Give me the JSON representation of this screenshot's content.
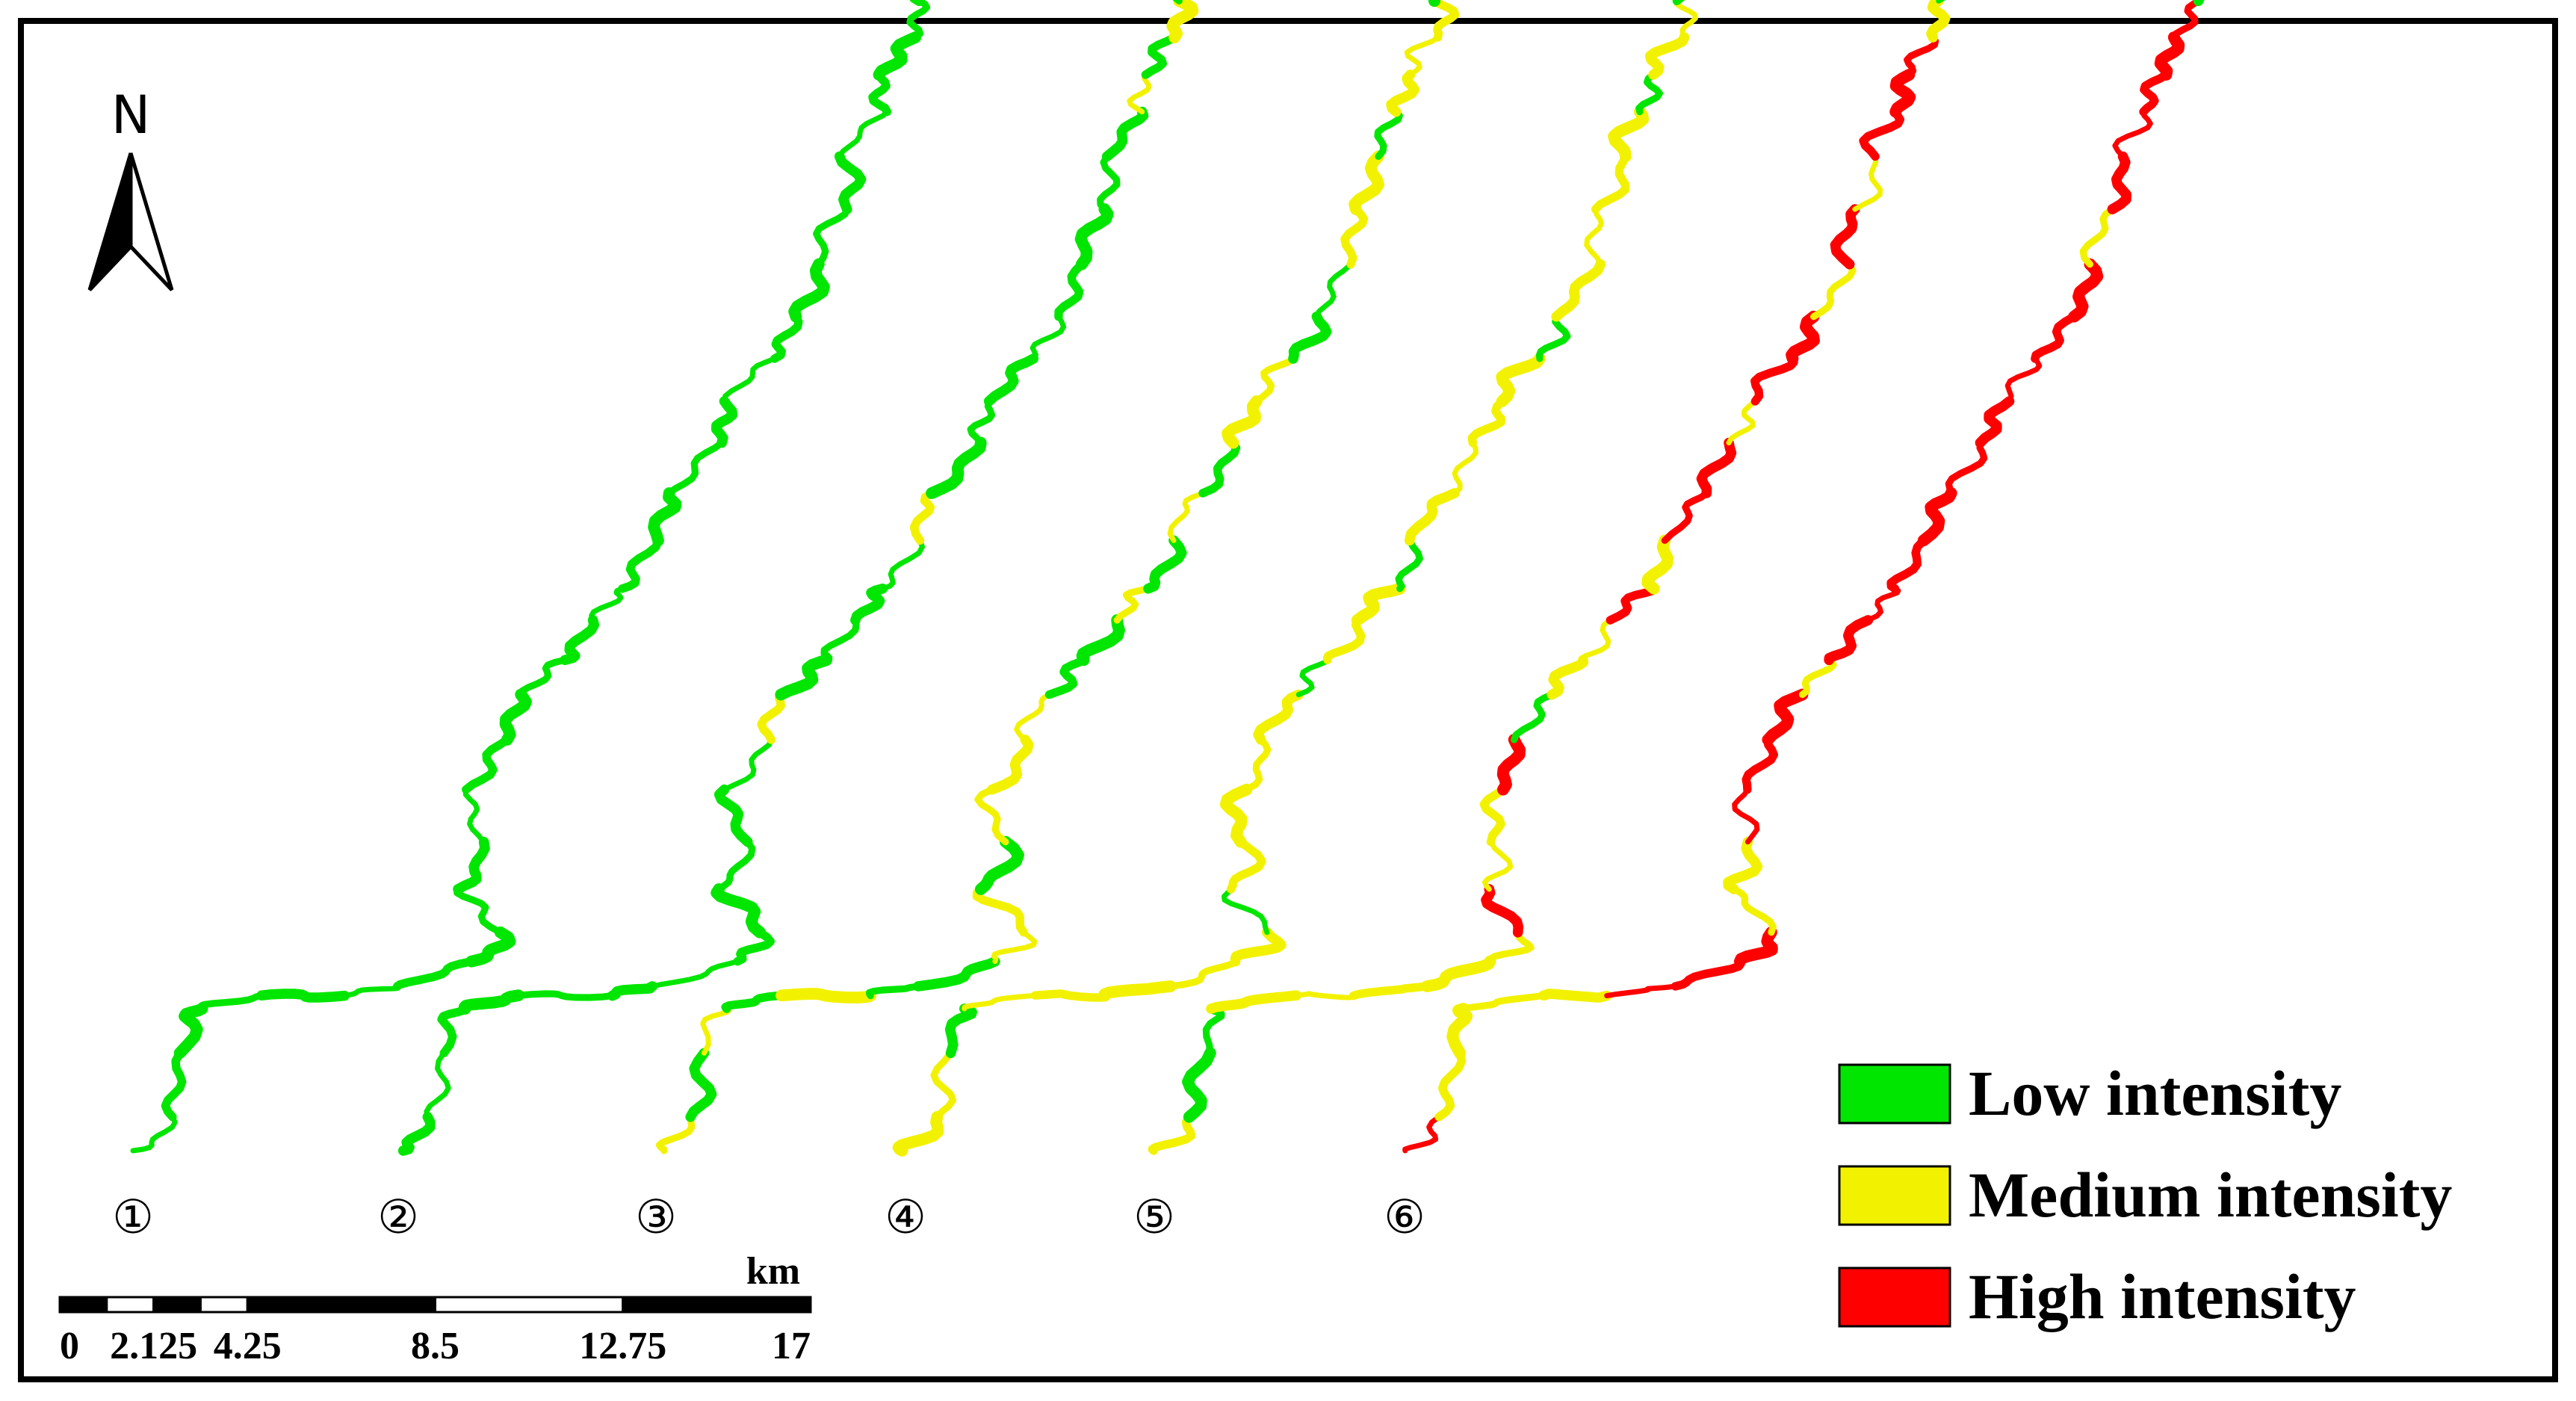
{
  "north_arrow": {
    "letter": "N",
    "icon": "north-arrow-icon"
  },
  "river_panels": [
    {
      "label": "①",
      "segments": [
        "low",
        "low",
        "low",
        "low",
        "low",
        "low",
        "low",
        "low",
        "low",
        "low",
        "low",
        "low",
        "low",
        "low",
        "low",
        "low",
        "low",
        "low",
        "low",
        "low",
        "low",
        "low",
        "low",
        "low",
        "low",
        "low",
        "low",
        "low",
        "low",
        "low"
      ]
    },
    {
      "label": "②",
      "segments": [
        "low",
        "low",
        "low",
        "low",
        "low",
        "low",
        "low",
        "low",
        "low",
        "low",
        "low",
        "low",
        "medium",
        "low",
        "low",
        "low",
        "low",
        "medium",
        "low",
        "low",
        "low",
        "low",
        "low",
        "low",
        "low",
        "low",
        "medium",
        "low",
        "medium",
        "low"
      ]
    },
    {
      "label": "③",
      "segments": [
        "medium",
        "low",
        "medium",
        "low",
        "medium",
        "low",
        "low",
        "medium",
        "medium",
        "low",
        "medium",
        "medium",
        "medium",
        "low",
        "low",
        "medium",
        "low",
        "medium",
        "low",
        "medium",
        "medium",
        "low",
        "low",
        "medium",
        "medium",
        "low",
        "medium",
        "medium",
        "medium",
        "low"
      ]
    },
    {
      "label": "④",
      "segments": [
        "medium",
        "medium",
        "low",
        "medium",
        "medium",
        "medium",
        "medium",
        "medium",
        "low",
        "medium",
        "medium",
        "medium",
        "medium",
        "low",
        "medium",
        "medium",
        "low",
        "medium",
        "medium",
        "medium",
        "medium",
        "low",
        "medium",
        "medium",
        "medium",
        "medium",
        "low",
        "medium",
        "medium",
        "low"
      ]
    },
    {
      "label": "⑤",
      "segments": [
        "medium",
        "low",
        "low",
        "medium",
        "medium",
        "medium",
        "medium",
        "medium",
        "high",
        "medium",
        "medium",
        "high",
        "low",
        "medium",
        "medium",
        "high",
        "medium",
        "high",
        "high",
        "medium",
        "high",
        "high",
        "medium",
        "high",
        "medium",
        "high",
        "high",
        "high",
        "medium",
        "low"
      ]
    },
    {
      "label": "⑥",
      "segments": [
        "high",
        "medium",
        "medium",
        "medium",
        "medium",
        "high",
        "high",
        "high",
        "medium",
        "medium",
        "high",
        "high",
        "high",
        "medium",
        "high",
        "high",
        "high",
        "high",
        "high",
        "high",
        "high",
        "high",
        "high",
        "medium",
        "high",
        "high",
        "high",
        "high",
        "high",
        "low"
      ]
    }
  ],
  "legend": [
    {
      "key": "low",
      "label": "Low intensity",
      "color": "#00e600"
    },
    {
      "key": "medium",
      "label": "Medium intensity",
      "color": "#f2f200"
    },
    {
      "key": "high",
      "label": "High intensity",
      "color": "#ff0000"
    }
  ],
  "scale_bar": {
    "unit": "km",
    "ticks": [
      "0",
      "2.125",
      "4.25",
      "8.5",
      "12.75",
      "17"
    ],
    "tick_values": [
      0,
      2.125,
      4.25,
      8.5,
      12.75,
      17
    ]
  }
}
